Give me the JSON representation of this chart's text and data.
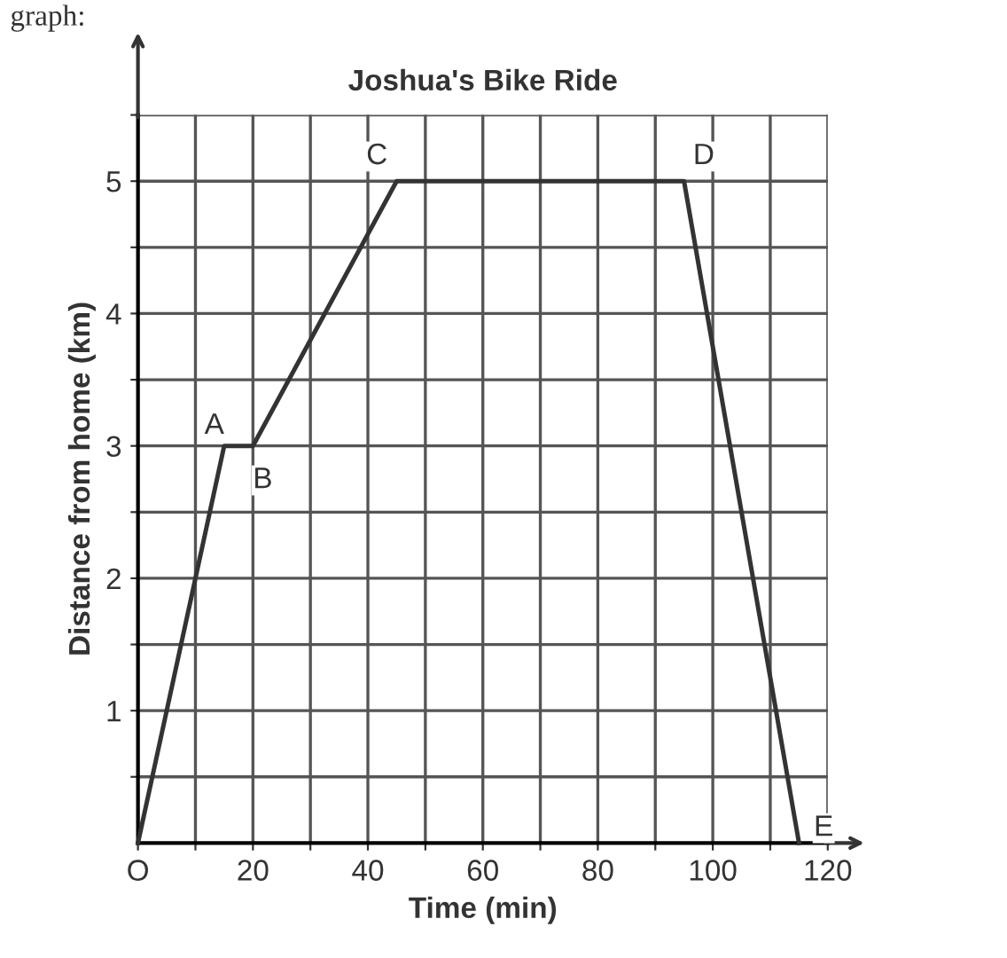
{
  "chart_data": {
    "type": "line",
    "title": "Joshua's Bike Ride",
    "xlabel": "Time (min)",
    "ylabel": "Distance from home (km)",
    "x": [
      0,
      15,
      20,
      45,
      95,
      115
    ],
    "series": [
      {
        "color": "#333333",
        "values": [
          0,
          3,
          3,
          5,
          5,
          0
        ]
      }
    ],
    "xlim": [
      0,
      120
    ],
    "ylim": [
      0,
      5.5
    ],
    "xticks": [
      {
        "value": 0,
        "label": "O"
      },
      {
        "value": 10,
        "label": null
      },
      20,
      {
        "value": 30,
        "label": null
      },
      40,
      {
        "value": 50,
        "label": null
      },
      60,
      {
        "value": 70,
        "label": null
      },
      80,
      {
        "value": 90,
        "label": null
      },
      100,
      {
        "value": 110,
        "label": null
      },
      120
    ],
    "yticks": [
      {
        "value": 0.5,
        "label": null
      },
      1,
      {
        "value": 1.5,
        "label": null
      },
      2,
      {
        "value": 2.5,
        "label": null
      },
      3,
      {
        "value": 3.5,
        "label": null
      },
      4,
      {
        "value": 4.5,
        "label": null
      },
      5,
      {
        "value": 5.5,
        "label": null
      }
    ],
    "grid": true,
    "marker": "none",
    "line_style": "solid",
    "annotations": [
      {
        "text": "A",
        "x": 15,
        "y": 3
      },
      {
        "text": "B",
        "x": 20,
        "y": 3
      },
      {
        "text": "C",
        "x": 45,
        "y": 5
      },
      {
        "text": "D",
        "x": 95,
        "y": 5
      },
      {
        "text": "E",
        "x": 115,
        "y": 0
      },
      "graph:"
    ]
  }
}
